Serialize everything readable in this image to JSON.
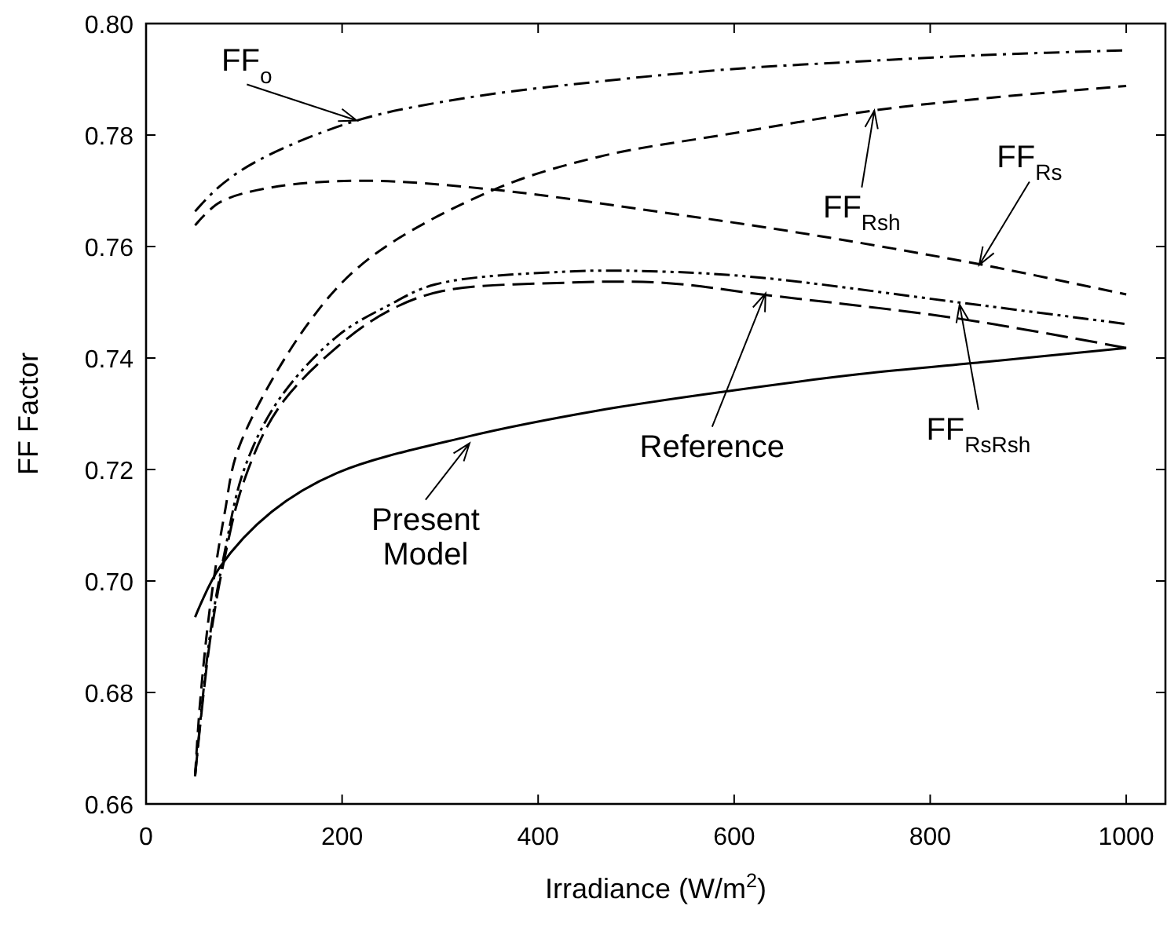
{
  "chart_data": {
    "type": "line",
    "xlabel": "Irradiance (W/m$^{2}$)",
    "ylabel": "FF Factor",
    "xlim": [
      0,
      1040
    ],
    "ylim": [
      0.66,
      0.8
    ],
    "xticks": [
      0,
      200,
      400,
      600,
      800,
      1000
    ],
    "yticks": [
      0.66,
      0.68,
      {
        "value": 0.7,
        "label": "0.70"
      },
      0.72,
      0.74,
      0.76,
      0.78,
      {
        "value": 0.8,
        "label": "0.80"
      }
    ],
    "grid": false,
    "series": [
      {
        "color": "#000000",
        "line_style": "dashdot",
        "x": [
          50,
          75,
          115,
          215,
          328,
          462,
          595,
          728,
          862,
          1000
        ],
        "values": [
          0.7663,
          0.7708,
          0.7755,
          0.7826,
          0.7867,
          0.7896,
          0.7918,
          0.7932,
          0.7944,
          0.7952
        ]
      },
      {
        "color": "#000000",
        "line_style": "dashed",
        "x": [
          50,
          55,
          65,
          80,
          95,
          165,
          228,
          355,
          462,
          595,
          742,
          862,
          1000
        ],
        "values": [
          0.665,
          0.678,
          0.695,
          0.712,
          0.7241,
          0.7461,
          0.7579,
          0.7702,
          0.7761,
          0.7802,
          0.7844,
          0.7867,
          0.7888
        ]
      },
      {
        "color": "#000000",
        "line_style": "dashed",
        "x": [
          50,
          75,
          128,
          222,
          355,
          528,
          662,
          848,
          1000
        ],
        "values": [
          0.7638,
          0.7679,
          0.7706,
          0.7718,
          0.7702,
          0.7661,
          0.7626,
          0.7569,
          0.7514
        ]
      },
      {
        "color": "#000000",
        "line_style": "dashdotdot",
        "x": [
          50,
          65,
          80,
          100,
          135,
          195,
          248,
          295,
          428,
          528,
          628,
          828,
          1000
        ],
        "values": [
          0.665,
          0.69,
          0.705,
          0.72,
          0.7324,
          0.7439,
          0.7495,
          0.7532,
          0.7555,
          0.7555,
          0.7544,
          0.75,
          0.7461
        ]
      },
      {
        "color": "#000000",
        "line_style": "longdash",
        "x": [
          50,
          65,
          80,
          100,
          135,
          195,
          248,
          302,
          428,
          528,
          628,
          828,
          1000
        ],
        "values": [
          0.665,
          0.689,
          0.704,
          0.718,
          0.731,
          0.742,
          0.7485,
          0.752,
          0.7535,
          0.7535,
          0.7514,
          0.7471,
          0.7418
        ]
      },
      {
        "color": "#000000",
        "line_style": "solid",
        "x": [
          50,
          75,
          128,
          195,
          328,
          462,
          595,
          728,
          862,
          1000
        ],
        "values": [
          0.6935,
          0.7024,
          0.7124,
          0.7194,
          0.7259,
          0.7306,
          0.7341,
          0.7371,
          0.7394,
          0.7418
        ]
      }
    ],
    "annotations": [
      {
        "text": "FF$_{o}$",
        "x": 215,
        "y": 0.7826
      },
      {
        "text": "FF$_{Rsh}$",
        "x": 743,
        "y": 0.7844
      },
      {
        "text": "FF$_{Rs}$",
        "x": 850,
        "y": 0.7567
      },
      {
        "text": "Reference",
        "x": 632,
        "y": 0.7516
      },
      {
        "text": "FF$_{RsRsh}$",
        "x": 830,
        "y": 0.7496
      },
      {
        "text": "Present\nModel",
        "x": 330,
        "y": 0.7247
      }
    ]
  }
}
